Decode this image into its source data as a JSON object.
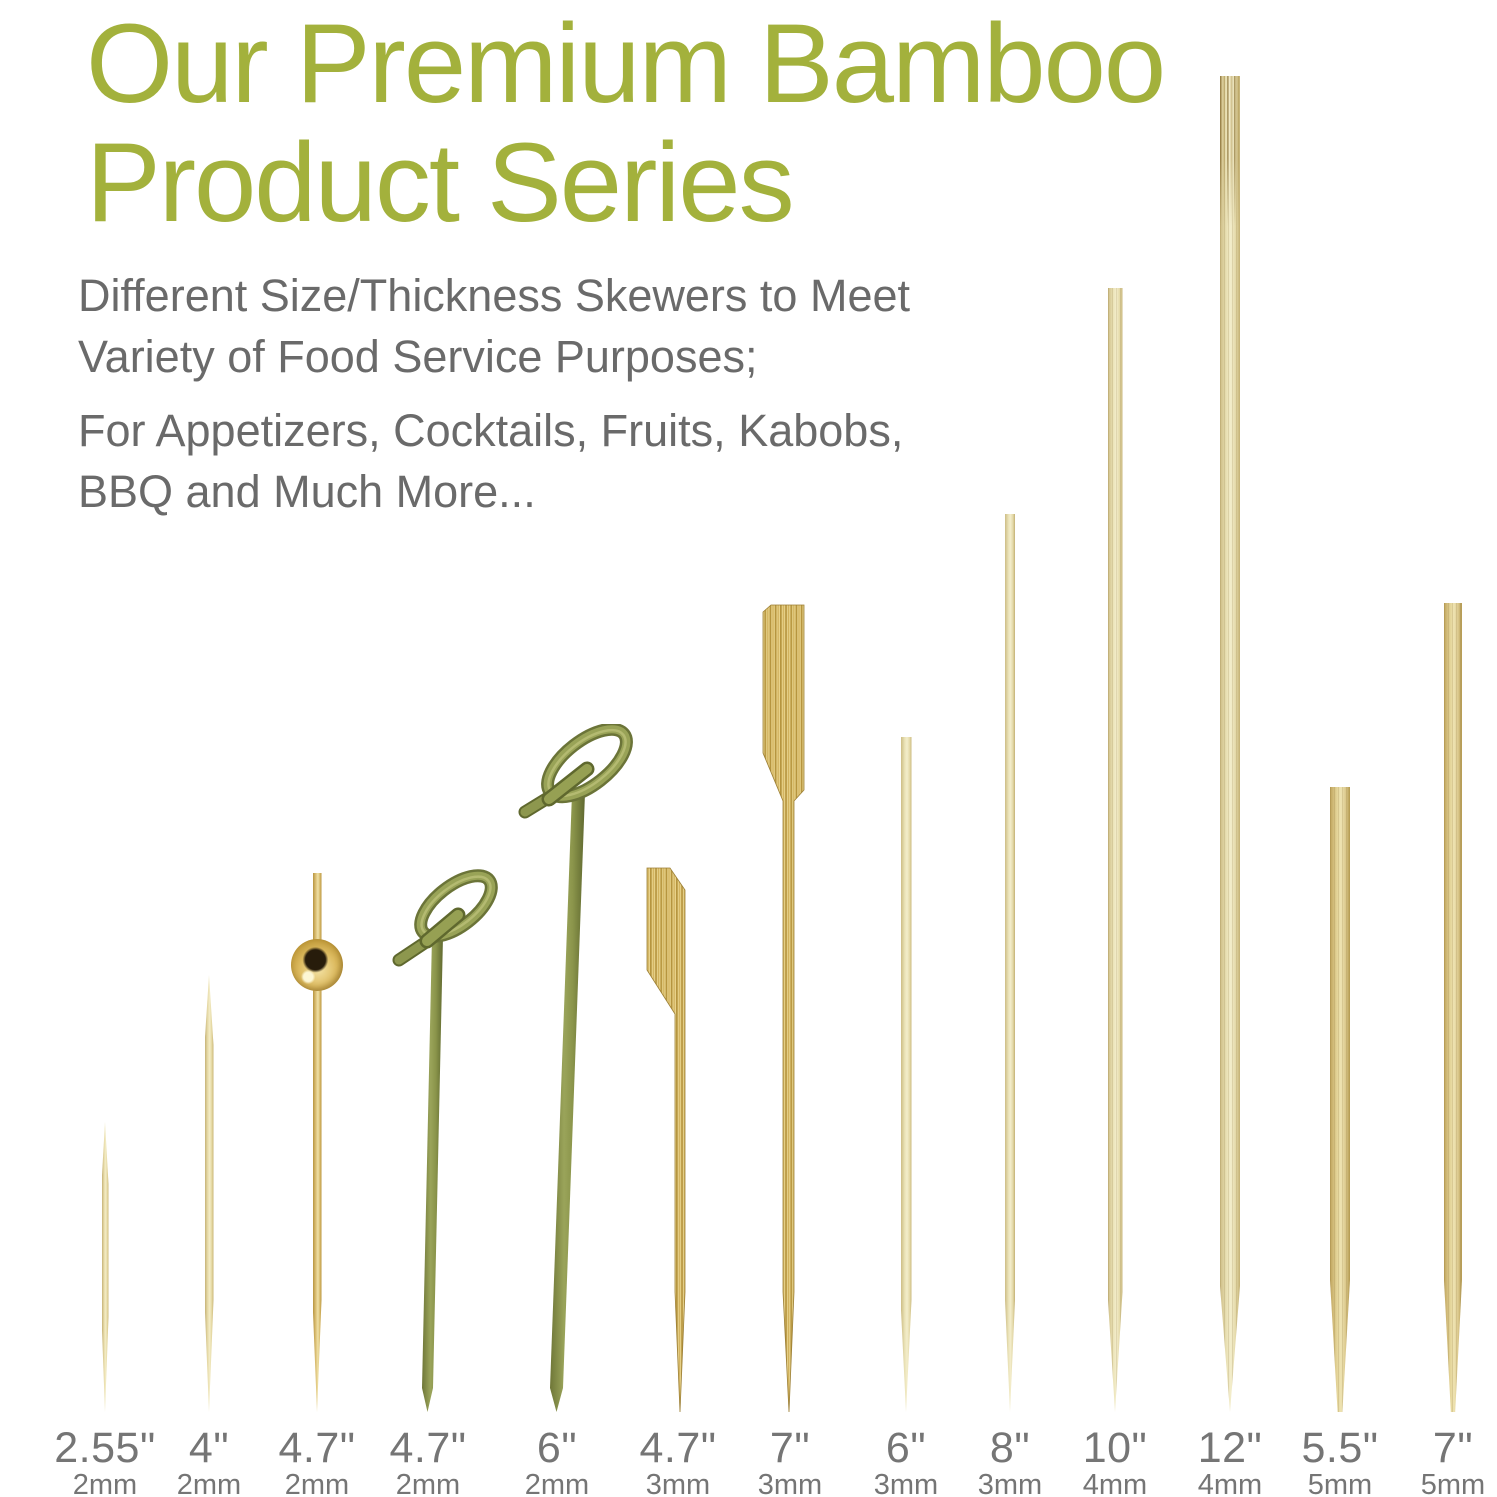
{
  "header": {
    "title_lines": [
      "Our Premium Bamboo",
      "Product Series"
    ]
  },
  "description": {
    "para1_lines": [
      "Different Size/Thickness Skewers to Meet",
      "Variety of Food Service Purposes;"
    ],
    "para2_lines": [
      "For Appetizers, Cocktails, Fruits, Kabobs,",
      "BBQ and Much More..."
    ]
  },
  "skewers": [
    {
      "length": "2.55\"",
      "thickness": "2mm",
      "type": "double-pointed-toothpick"
    },
    {
      "length": "4\"",
      "thickness": "2mm",
      "type": "pointed-skewer"
    },
    {
      "length": "4.7\"",
      "thickness": "2mm",
      "type": "gold-ball-cocktail-pick"
    },
    {
      "length": "4.7\"",
      "thickness": "2mm",
      "type": "green-knotted-cocktail-pick"
    },
    {
      "length": "6\"",
      "thickness": "2mm",
      "type": "green-knotted-cocktail-pick"
    },
    {
      "length": "4.7\"",
      "thickness": "3mm",
      "type": "paddle-skewer"
    },
    {
      "length": "7\"",
      "thickness": "3mm",
      "type": "paddle-skewer"
    },
    {
      "length": "6\"",
      "thickness": "3mm",
      "type": "round-skewer"
    },
    {
      "length": "8\"",
      "thickness": "3mm",
      "type": "round-skewer"
    },
    {
      "length": "10\"",
      "thickness": "4mm",
      "type": "round-skewer"
    },
    {
      "length": "12\"",
      "thickness": "4mm",
      "type": "round-skewer-frayed-top"
    },
    {
      "length": "5.5\"",
      "thickness": "5mm",
      "type": "round-skewer-blunt-tip"
    },
    {
      "length": "7\"",
      "thickness": "5mm",
      "type": "round-skewer-blunt-tip"
    }
  ],
  "colors": {
    "title_green": "#a3b13c",
    "body_gray": "#6a6a6a",
    "label_gray": "#757575",
    "bamboo_light": "#eee3b8",
    "bamboo_gold": "#dcc27a",
    "knot_green": "#8d974e",
    "knot_green_dark": "#6b7438",
    "ball_gold": "#d2ab4a",
    "background": "#ffffff"
  }
}
